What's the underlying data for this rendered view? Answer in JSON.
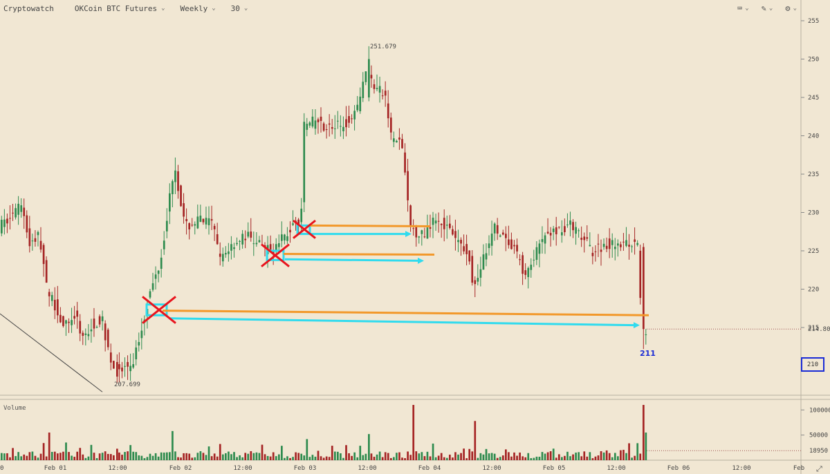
{
  "toolbar": {
    "brand": "Cryptowatch",
    "market": "OKCoin BTC Futures",
    "period": "Weekly",
    "interval": "30",
    "icons": [
      "keyboard-icon",
      "draw-tool-icon",
      "gear-icon"
    ]
  },
  "labels": {
    "high": "251.679",
    "low": "207.699",
    "current_price": "214.80",
    "boxed_price": "210",
    "annotation": "211",
    "volume_title": "Volume",
    "volume_last": "18950"
  },
  "chart_data": {
    "type": "candlestick",
    "price_axis": {
      "min": 205,
      "max": 257,
      "ticks": [
        215,
        220,
        225,
        230,
        235,
        240,
        245,
        250,
        255
      ]
    },
    "volume_axis": {
      "min": 0,
      "max": 110000,
      "ticks": [
        50000,
        100000
      ]
    },
    "x_ticks": [
      "0",
      "Feb 01",
      "12:00",
      "Feb 02",
      "12:00",
      "Feb 03",
      "12:00",
      "Feb 04",
      "12:00",
      "Feb 05",
      "12:00",
      "Feb 06",
      "12:00",
      "Feb"
    ],
    "price_path": [
      [
        0,
        228.0
      ],
      [
        20,
        229.5
      ],
      [
        35,
        231.0
      ],
      [
        45,
        226.0
      ],
      [
        60,
        227.0
      ],
      [
        72,
        219.0
      ],
      [
        80,
        218.5
      ],
      [
        95,
        215.0
      ],
      [
        110,
        216.5
      ],
      [
        125,
        213.5
      ],
      [
        135,
        215.5
      ],
      [
        150,
        216.0
      ],
      [
        165,
        210.0
      ],
      [
        180,
        209.5
      ],
      [
        195,
        210.5
      ],
      [
        205,
        214.0
      ],
      [
        215,
        218.0
      ],
      [
        235,
        224.0
      ],
      [
        248,
        232.0
      ],
      [
        255,
        236.5
      ],
      [
        270,
        228.0
      ],
      [
        290,
        229.0
      ],
      [
        310,
        228.5
      ],
      [
        320,
        224.0
      ],
      [
        340,
        226.0
      ],
      [
        360,
        227.0
      ],
      [
        380,
        225.5
      ],
      [
        395,
        225.0
      ],
      [
        410,
        226.5
      ],
      [
        425,
        228.0
      ],
      [
        438,
        229.5
      ],
      [
        442,
        241.0
      ],
      [
        460,
        242.0
      ],
      [
        480,
        241.0
      ],
      [
        500,
        241.5
      ],
      [
        520,
        244.0
      ],
      [
        533,
        249.5
      ],
      [
        540,
        247.0
      ],
      [
        560,
        245.0
      ],
      [
        568,
        240.0
      ],
      [
        585,
        238.5
      ],
      [
        595,
        228.0
      ],
      [
        605,
        227.5
      ],
      [
        615,
        227.0
      ],
      [
        630,
        229.5
      ],
      [
        645,
        228.5
      ],
      [
        660,
        226.5
      ],
      [
        680,
        225.0
      ],
      [
        688,
        220.0
      ],
      [
        700,
        223.5
      ],
      [
        718,
        228.0
      ],
      [
        735,
        226.0
      ],
      [
        752,
        224.5
      ],
      [
        762,
        221.5
      ],
      [
        775,
        224.0
      ],
      [
        790,
        227.0
      ],
      [
        805,
        227.5
      ],
      [
        825,
        228.5
      ],
      [
        845,
        226.5
      ],
      [
        860,
        225.0
      ],
      [
        880,
        226.0
      ],
      [
        905,
        226.0
      ],
      [
        925,
        225.5
      ],
      [
        930,
        214.8
      ]
    ],
    "highlight_candles": [
      {
        "x": 532,
        "open": 245.0,
        "close": 250.0,
        "high": 251.679,
        "low": 244.5
      },
      {
        "x": 168,
        "open": 210.5,
        "close": 208.6,
        "high": 211.5,
        "low": 207.699
      },
      {
        "x": 929,
        "open": 225.5,
        "close": 214.8,
        "high": 226.0,
        "low": 212.2
      }
    ],
    "volume_spikes": [
      {
        "x": 442,
        "v": 42000
      },
      {
        "x": 530,
        "v": 52000
      },
      {
        "x": 595,
        "v": 110000
      },
      {
        "x": 685,
        "v": 78000
      },
      {
        "x": 929,
        "v": 110000
      },
      {
        "x": 933,
        "v": 55000
      },
      {
        "x": 250,
        "v": 58000
      },
      {
        "x": 70,
        "v": 55000
      }
    ],
    "annotations": {
      "boxes": [
        {
          "x1": 212,
          "x2": 241,
          "y1": 218.0,
          "y2": 216.6
        },
        {
          "x1": 386,
          "x2": 410,
          "y1": 225.0,
          "y2": 223.8
        },
        {
          "x1": 430,
          "x2": 448,
          "y1": 228.3,
          "y2": 227.2
        }
      ],
      "orange_lines": [
        {
          "x1": 235,
          "y1": 217.2,
          "x2": 938,
          "y2": 216.6
        },
        {
          "x1": 410,
          "y1": 224.6,
          "x2": 628,
          "y2": 224.5
        },
        {
          "x1": 448,
          "y1": 228.3,
          "x2": 622,
          "y2": 228.2
        }
      ],
      "cyan_arrows": [
        {
          "x1": 244,
          "y1": 216.2,
          "x2": 922,
          "y2": 215.3
        },
        {
          "x1": 412,
          "y1": 223.9,
          "x2": 610,
          "y2": 223.7
        },
        {
          "x1": 448,
          "y1": 227.2,
          "x2": 592,
          "y2": 227.2
        }
      ],
      "x_marks": [
        {
          "x": 230,
          "y": 217.3,
          "size": 24
        },
        {
          "x": 398,
          "y": 224.4,
          "size": 20
        },
        {
          "x": 440,
          "y": 227.8,
          "size": 16
        }
      ],
      "trendline": {
        "x1": 0,
        "y1": 216.8,
        "x2": 148,
        "y2": 206.6
      }
    },
    "colors": {
      "up": "#2e8b4e",
      "down": "#a52424",
      "orange": "#f2982a",
      "cyan": "#30dbee",
      "red": "#e8141d",
      "box_border": "#1a2bd6"
    }
  }
}
